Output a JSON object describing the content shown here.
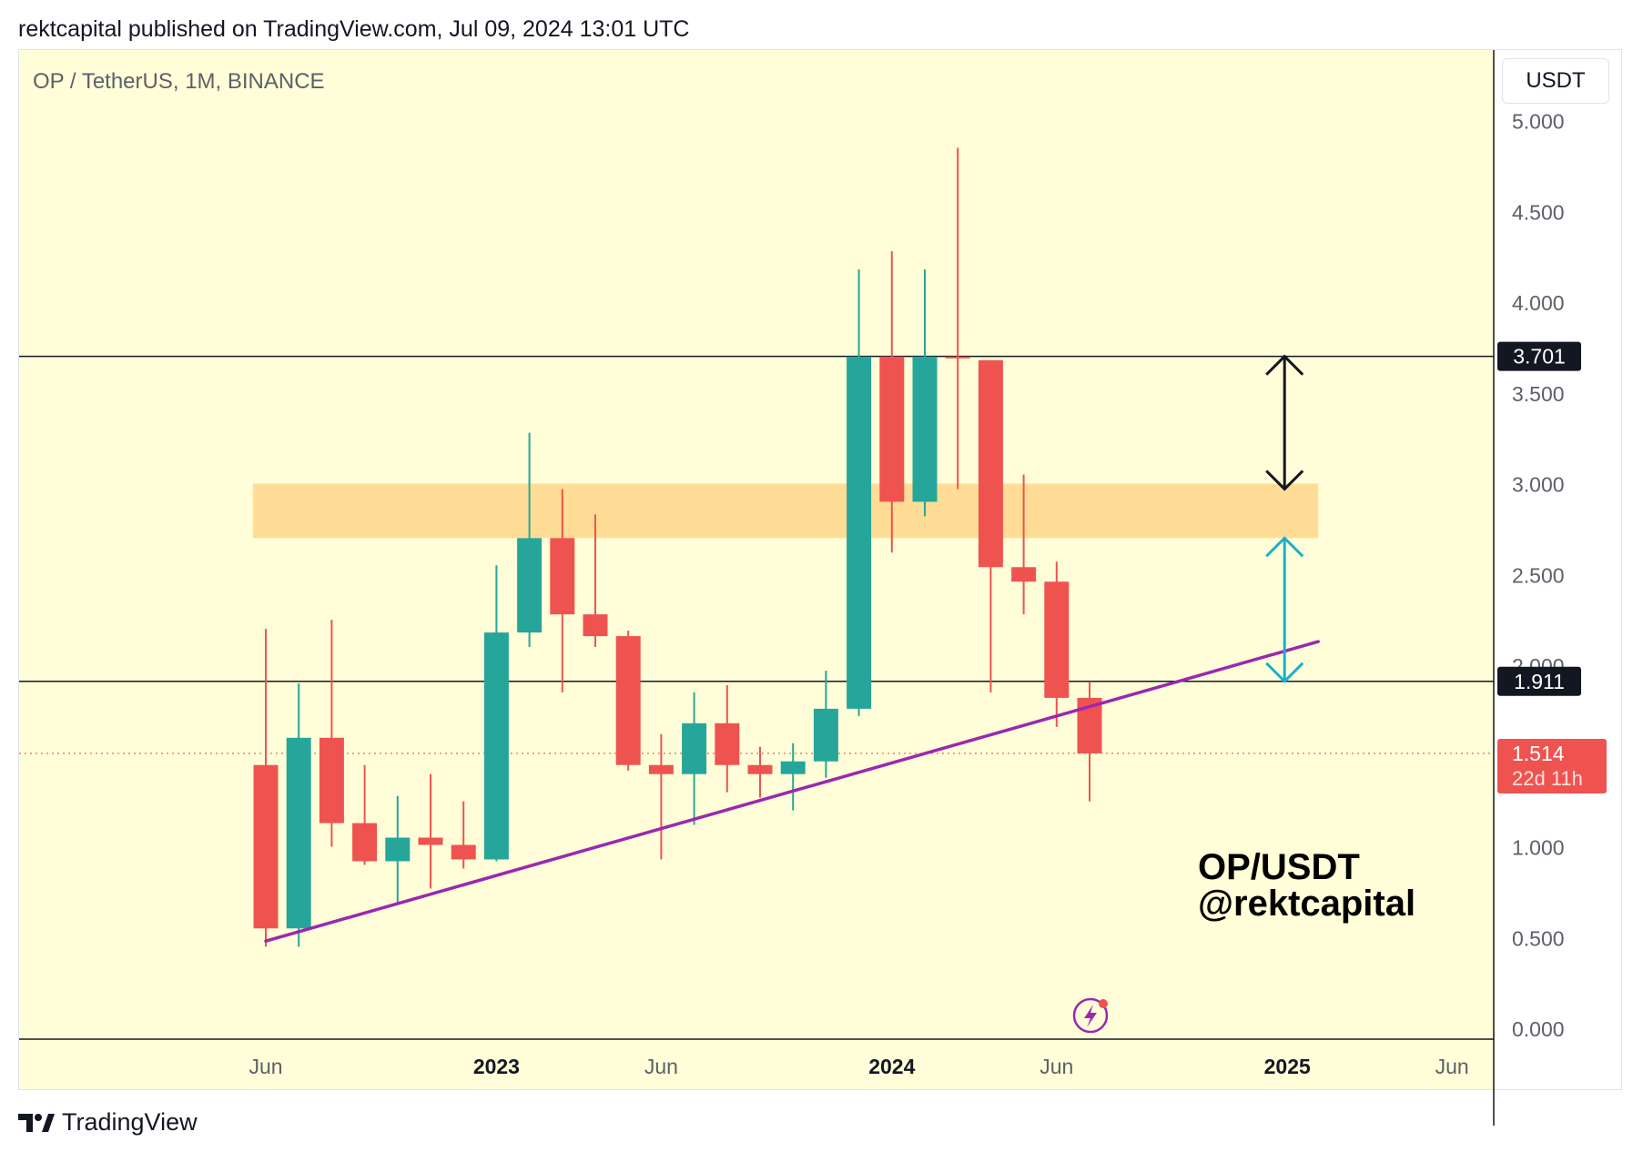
{
  "header": {
    "text": "rektcapital published on TradingView.com, Jul 09, 2024 13:01 UTC"
  },
  "symbol_label": "OP / TetherUS, 1M, BINANCE",
  "currency_badge": "USDT",
  "footer": {
    "brand": "TradingView"
  },
  "colors": {
    "background": "#fffed8",
    "up": "#26a69a",
    "down": "#ef5350",
    "zone": "#ffd98f",
    "trendline": "#9c27b0",
    "cyan_arrow": "#1ab0cc",
    "last_price": "#ef5350"
  },
  "chart_data": {
    "type": "candlestick",
    "title": "OP/USDT",
    "watermark": [
      "OP/USDT",
      "@rektcapital"
    ],
    "interval": "1M",
    "ylim": [
      0,
      5.5
    ],
    "y_ticks": [
      "0.000",
      "0.500",
      "1.000",
      "2.000",
      "2.500",
      "3.000",
      "3.500",
      "4.000",
      "4.500",
      "5.000"
    ],
    "x_ticks": [
      {
        "label": "Jun",
        "month": "2022-06",
        "bold": false
      },
      {
        "label": "2023",
        "month": "2023-01",
        "bold": true
      },
      {
        "label": "Jun",
        "month": "2023-06",
        "bold": false
      },
      {
        "label": "2024",
        "month": "2024-01",
        "bold": true
      },
      {
        "label": "Jun",
        "month": "2024-06",
        "bold": false
      },
      {
        "label": "2025",
        "month": "2025-01",
        "bold": true
      },
      {
        "label": "Jun",
        "month": "2025-06",
        "bold": false
      }
    ],
    "candles": [
      {
        "month": "2022-06",
        "open": 1.45,
        "high": 2.2,
        "low": 0.45,
        "close": 0.55
      },
      {
        "month": "2022-07",
        "open": 0.55,
        "high": 1.9,
        "low": 0.45,
        "close": 1.6
      },
      {
        "month": "2022-08",
        "open": 1.6,
        "high": 2.25,
        "low": 1.0,
        "close": 1.13
      },
      {
        "month": "2022-09",
        "open": 1.13,
        "high": 1.45,
        "low": 0.9,
        "close": 0.92
      },
      {
        "month": "2022-10",
        "open": 0.92,
        "high": 1.28,
        "low": 0.68,
        "close": 1.05
      },
      {
        "month": "2022-11",
        "open": 1.05,
        "high": 1.4,
        "low": 0.77,
        "close": 1.01
      },
      {
        "month": "2022-12",
        "open": 1.01,
        "high": 1.25,
        "low": 0.88,
        "close": 0.93
      },
      {
        "month": "2023-01",
        "open": 0.93,
        "high": 2.55,
        "low": 0.92,
        "close": 2.18
      },
      {
        "month": "2023-02",
        "open": 2.18,
        "high": 3.28,
        "low": 2.1,
        "close": 2.7
      },
      {
        "month": "2023-03",
        "open": 2.7,
        "high": 2.97,
        "low": 1.85,
        "close": 2.28
      },
      {
        "month": "2023-04",
        "open": 2.28,
        "high": 2.83,
        "low": 2.1,
        "close": 2.16
      },
      {
        "month": "2023-05",
        "open": 2.16,
        "high": 2.19,
        "low": 1.42,
        "close": 1.45
      },
      {
        "month": "2023-06",
        "open": 1.45,
        "high": 1.62,
        "low": 0.93,
        "close": 1.4
      },
      {
        "month": "2023-07",
        "open": 1.4,
        "high": 1.85,
        "low": 1.12,
        "close": 1.68
      },
      {
        "month": "2023-08",
        "open": 1.68,
        "high": 1.89,
        "low": 1.3,
        "close": 1.45
      },
      {
        "month": "2023-09",
        "open": 1.45,
        "high": 1.55,
        "low": 1.27,
        "close": 1.4
      },
      {
        "month": "2023-10",
        "open": 1.4,
        "high": 1.57,
        "low": 1.2,
        "close": 1.47
      },
      {
        "month": "2023-11",
        "open": 1.47,
        "high": 1.97,
        "low": 1.38,
        "close": 1.76
      },
      {
        "month": "2023-12",
        "open": 1.76,
        "high": 4.18,
        "low": 1.72,
        "close": 3.7
      },
      {
        "month": "2024-01",
        "open": 3.7,
        "high": 4.28,
        "low": 2.62,
        "close": 2.9
      },
      {
        "month": "2024-02",
        "open": 2.9,
        "high": 4.18,
        "low": 2.82,
        "close": 3.7
      },
      {
        "month": "2024-03",
        "open": 3.7,
        "high": 4.85,
        "low": 2.97,
        "close": 3.69
      },
      {
        "month": "2024-04",
        "open": 3.68,
        "high": 3.68,
        "low": 1.85,
        "close": 2.54
      },
      {
        "month": "2024-05",
        "open": 2.54,
        "high": 3.05,
        "low": 2.28,
        "close": 2.46
      },
      {
        "month": "2024-06",
        "open": 2.46,
        "high": 2.57,
        "low": 1.66,
        "close": 1.82
      },
      {
        "month": "2024-07",
        "open": 1.82,
        "high": 1.91,
        "low": 1.25,
        "close": 1.514
      }
    ],
    "horizontal_levels": [
      {
        "value": 3.701,
        "label": "3.701"
      },
      {
        "value": 1.911,
        "label": "1.911"
      }
    ],
    "last_price": {
      "value": 1.514,
      "label": "1.514",
      "countdown": "22d 11h"
    },
    "zone": {
      "from_month": "2022-05",
      "to_month": "2025-01",
      "low": 2.7,
      "high": 3.0
    },
    "trendline": {
      "start": {
        "month": "2022-06",
        "value": 0.48
      },
      "end": {
        "month": "2025-01",
        "value": 2.13
      }
    },
    "arrows": [
      {
        "color": "black",
        "month": "2025-01",
        "from": 3.701,
        "to": 2.97
      },
      {
        "color": "cyan",
        "month": "2025-01",
        "from": 2.7,
        "to": 1.911
      }
    ]
  }
}
